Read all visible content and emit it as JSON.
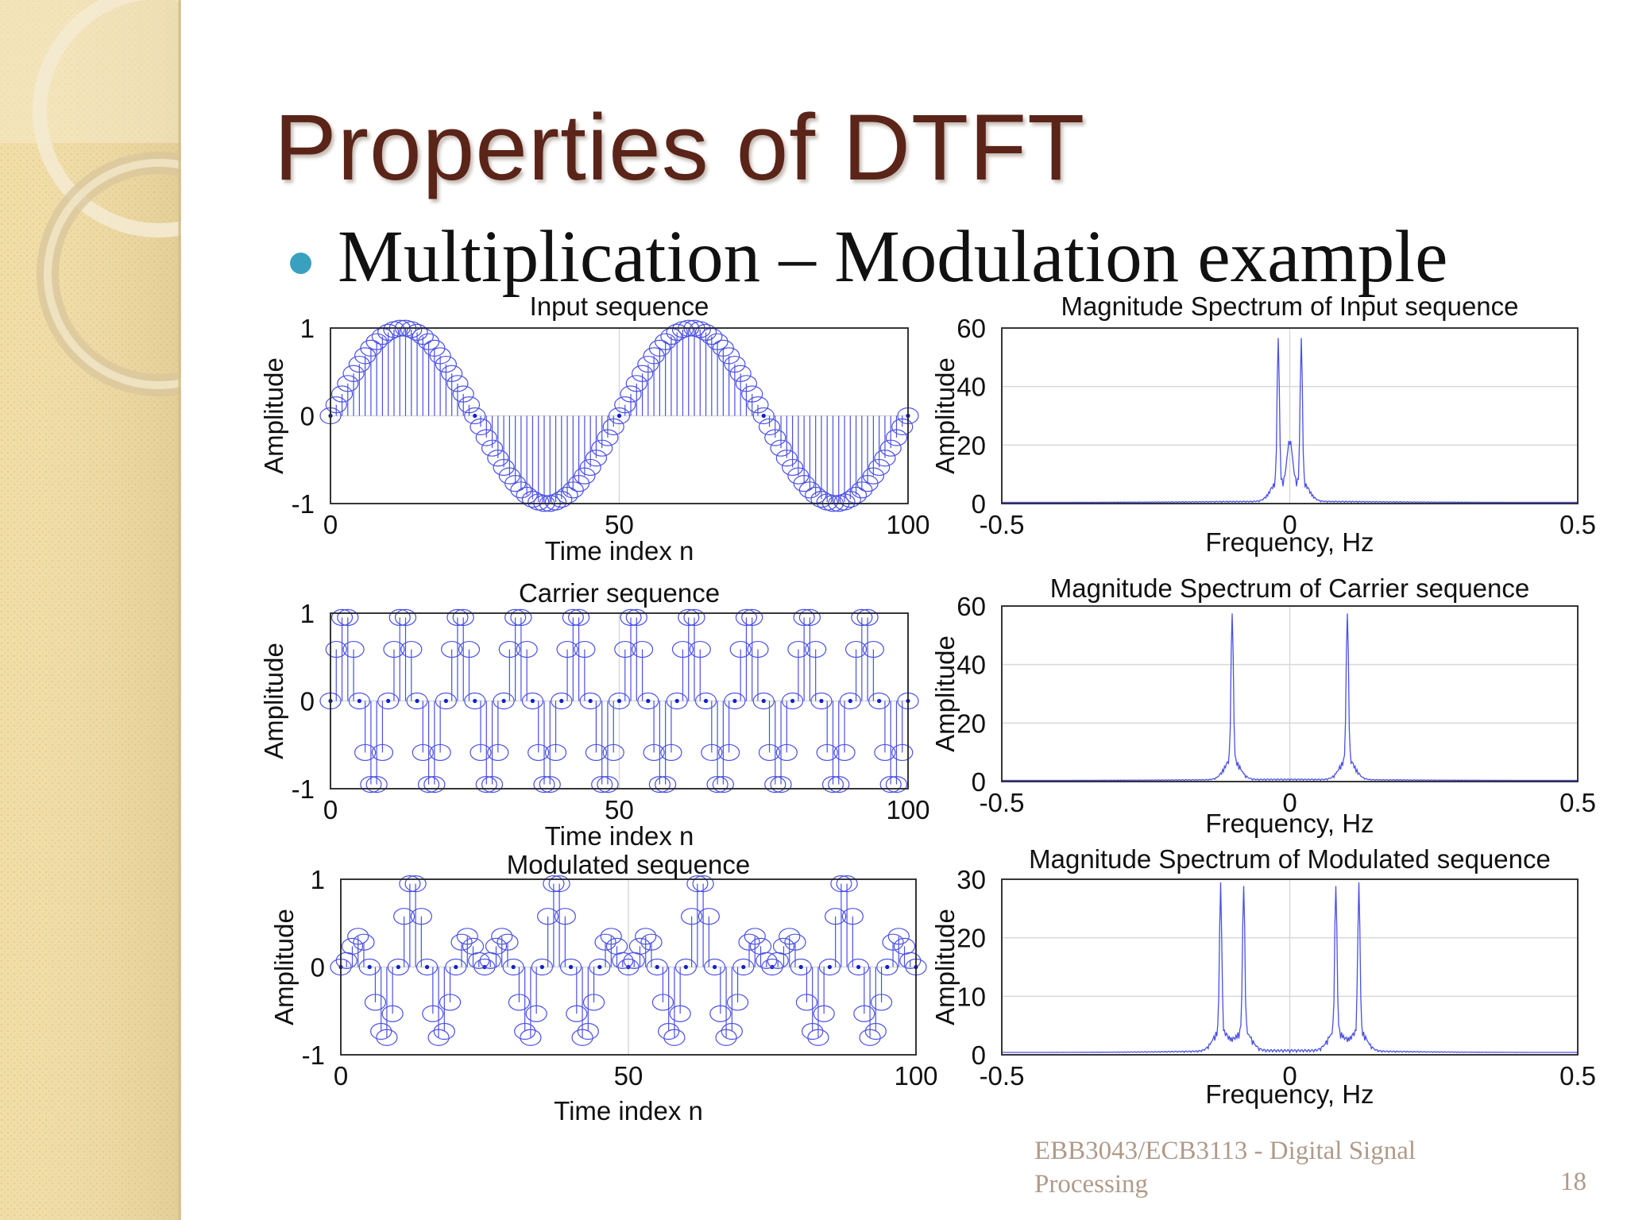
{
  "slide": {
    "title": "Properties of DTFT",
    "bullet": "Multiplication – Modulation example",
    "footer_course": "EBB3043/ECB3113 - Digital Signal Processing",
    "page_number": "18"
  },
  "colors": {
    "title": "#5a2419",
    "bullet_dot": "#3aa0c0",
    "plot_line": "#4a50e6",
    "footer": "#b09a8a",
    "sidebar": "#f1dda8"
  },
  "chart_data": [
    {
      "type": "stem",
      "title": "Input sequence",
      "xlabel": "Time index n",
      "ylabel": "Amplitude",
      "xlim": [
        0,
        100
      ],
      "ylim": [
        -1,
        1
      ],
      "xticks": [
        "0",
        "50",
        "100"
      ],
      "yticks": [
        "-1",
        "0",
        "1"
      ],
      "grid": true,
      "x_range": [
        0,
        100
      ],
      "formula": "sin(2*pi*0.02*n)"
    },
    {
      "type": "line",
      "title": "Magnitude Spectrum of Input sequence",
      "xlabel": "Frequency, Hz",
      "ylabel": "Amplitude",
      "xlim": [
        -0.5,
        0.5
      ],
      "ylim": [
        0,
        60
      ],
      "xticks": [
        "-0.5",
        "0",
        "0.5"
      ],
      "yticks": [
        "0",
        "20",
        "40",
        "60"
      ],
      "grid": true,
      "peaks": [
        {
          "f": -0.02,
          "amplitude": 49
        },
        {
          "f": 0.02,
          "amplitude": 49
        }
      ],
      "center_value": 17
    },
    {
      "type": "stem",
      "title": "Carrier sequence",
      "xlabel": "Time index n",
      "ylabel": "Amplitude",
      "xlim": [
        0,
        100
      ],
      "ylim": [
        -1,
        1
      ],
      "xticks": [
        "0",
        "50",
        "100"
      ],
      "yticks": [
        "-1",
        "0",
        "1"
      ],
      "grid": true,
      "x_range": [
        0,
        100
      ],
      "formula": "sin(2*pi*0.1*n)"
    },
    {
      "type": "line",
      "title": "Magnitude Spectrum of Carrier sequence",
      "xlabel": "Frequency, Hz",
      "ylabel": "Amplitude",
      "xlim": [
        -0.5,
        0.5
      ],
      "ylim": [
        0,
        60
      ],
      "xticks": [
        "-0.5",
        "0",
        "0.5"
      ],
      "yticks": [
        "0",
        "20",
        "40",
        "60"
      ],
      "grid": true,
      "peaks": [
        {
          "f": -0.1,
          "amplitude": 51
        },
        {
          "f": 0.1,
          "amplitude": 51
        }
      ]
    },
    {
      "type": "stem",
      "title": "Modulated sequence",
      "xlabel": "Time index n",
      "ylabel": "Amplitude",
      "xlim": [
        0,
        100
      ],
      "ylim": [
        -1,
        1
      ],
      "xticks": [
        "0",
        "50",
        "100"
      ],
      "yticks": [
        "-1",
        "0",
        "1"
      ],
      "grid": true,
      "x_range": [
        0,
        100
      ],
      "formula": "sin(2*pi*0.02*n)*sin(2*pi*0.1*n)"
    },
    {
      "type": "line",
      "title": "Magnitude Spectrum of Modulated sequence",
      "xlabel": "Frequency, Hz",
      "ylabel": "Amplitude",
      "xlim": [
        -0.5,
        0.5
      ],
      "ylim": [
        0,
        30
      ],
      "xticks": [
        "-0.5",
        "0",
        "0.5"
      ],
      "yticks": [
        "0",
        "10",
        "20",
        "30"
      ],
      "grid": true,
      "peaks": [
        {
          "f": -0.12,
          "amplitude": 25
        },
        {
          "f": -0.08,
          "amplitude": 25
        },
        {
          "f": 0.08,
          "amplitude": 25
        },
        {
          "f": 0.12,
          "amplitude": 25
        }
      ]
    }
  ]
}
